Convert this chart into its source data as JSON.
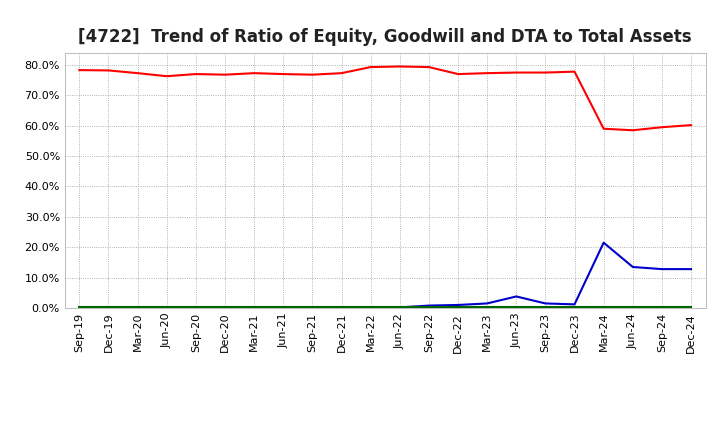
{
  "title": "[4722]  Trend of Ratio of Equity, Goodwill and DTA to Total Assets",
  "x_labels": [
    "Sep-19",
    "Dec-19",
    "Mar-20",
    "Jun-20",
    "Sep-20",
    "Dec-20",
    "Mar-21",
    "Jun-21",
    "Sep-21",
    "Dec-21",
    "Mar-22",
    "Jun-22",
    "Sep-22",
    "Dec-22",
    "Mar-23",
    "Jun-23",
    "Sep-23",
    "Dec-23",
    "Mar-24",
    "Jun-24",
    "Sep-24",
    "Dec-24"
  ],
  "equity": [
    0.783,
    0.782,
    0.773,
    0.763,
    0.77,
    0.768,
    0.773,
    0.77,
    0.768,
    0.773,
    0.793,
    0.795,
    0.793,
    0.77,
    0.773,
    0.775,
    0.775,
    0.778,
    0.59,
    0.585,
    0.595,
    0.602
  ],
  "goodwill": [
    0.002,
    0.002,
    0.002,
    0.002,
    0.002,
    0.002,
    0.002,
    0.002,
    0.002,
    0.002,
    0.002,
    0.002,
    0.008,
    0.01,
    0.015,
    0.038,
    0.015,
    0.012,
    0.215,
    0.135,
    0.128,
    0.128
  ],
  "dta": [
    0.003,
    0.003,
    0.003,
    0.003,
    0.003,
    0.003,
    0.003,
    0.003,
    0.003,
    0.003,
    0.003,
    0.003,
    0.003,
    0.003,
    0.003,
    0.003,
    0.003,
    0.003,
    0.003,
    0.003,
    0.003,
    0.003
  ],
  "equity_color": "#FF0000",
  "goodwill_color": "#0000CC",
  "dta_color": "#006600",
  "background_color": "#FFFFFF",
  "plot_bg_color": "#FFFFFF",
  "grid_color": "#999999",
  "ylim": [
    0.0,
    0.84
  ],
  "yticks": [
    0.0,
    0.1,
    0.2,
    0.3,
    0.4,
    0.5,
    0.6,
    0.7,
    0.8
  ],
  "title_fontsize": 12,
  "legend_fontsize": 9,
  "tick_fontsize": 8,
  "linewidth": 1.5
}
